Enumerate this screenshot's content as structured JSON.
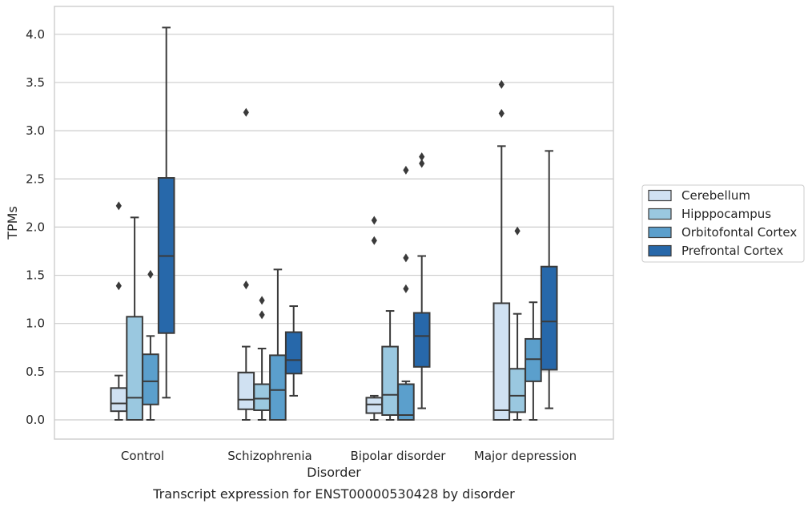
{
  "chart_data": {
    "type": "box",
    "xlabel": "Disorder",
    "ylabel": "TPMs",
    "caption": "Transcript expression for ENST00000530428 by disorder",
    "ylim": [
      -0.2,
      4.25
    ],
    "yticks": [
      "0.0",
      "0.5",
      "1.0",
      "1.5",
      "2.0",
      "2.5",
      "3.0",
      "3.5",
      "4.0"
    ],
    "grid": "horizontal",
    "legend_position": "right",
    "categories": [
      "Control",
      "Schizophrenia",
      "Bipolar disorder",
      "Major depression"
    ],
    "series": [
      {
        "name": "Cerebellum",
        "color": "#d0e1f2",
        "boxes": [
          {
            "whisker_low": 0.0,
            "q1": 0.09,
            "median": 0.17,
            "q3": 0.33,
            "whisker_high": 0.46,
            "outliers": [
              2.22,
              1.39
            ]
          },
          {
            "whisker_low": 0.0,
            "q1": 0.11,
            "median": 0.21,
            "q3": 0.49,
            "whisker_high": 0.76,
            "outliers": [
              3.19,
              1.4
            ]
          },
          {
            "whisker_low": 0.0,
            "q1": 0.07,
            "median": 0.16,
            "q3": 0.23,
            "whisker_high": 0.25,
            "outliers": [
              2.07,
              1.86
            ]
          },
          {
            "whisker_low": 0.0,
            "q1": 0.0,
            "median": 0.1,
            "q3": 1.21,
            "whisker_high": 2.84,
            "outliers": [
              3.48,
              3.18
            ]
          }
        ]
      },
      {
        "name": "Hipppocampus",
        "color": "#9ac8e0",
        "boxes": [
          {
            "whisker_low": 0.0,
            "q1": 0.0,
            "median": 0.23,
            "q3": 1.07,
            "whisker_high": 2.1,
            "outliers": []
          },
          {
            "whisker_low": 0.0,
            "q1": 0.1,
            "median": 0.22,
            "q3": 0.37,
            "whisker_high": 0.74,
            "outliers": [
              1.24,
              1.09
            ]
          },
          {
            "whisker_low": 0.0,
            "q1": 0.05,
            "median": 0.26,
            "q3": 0.76,
            "whisker_high": 1.13,
            "outliers": []
          },
          {
            "whisker_low": 0.0,
            "q1": 0.08,
            "median": 0.25,
            "q3": 0.53,
            "whisker_high": 1.1,
            "outliers": [
              1.96
            ]
          }
        ]
      },
      {
        "name": "Orbitofontal Cortex",
        "color": "#5b9fcc",
        "boxes": [
          {
            "whisker_low": 0.0,
            "q1": 0.16,
            "median": 0.4,
            "q3": 0.68,
            "whisker_high": 0.87,
            "outliers": [
              1.51
            ]
          },
          {
            "whisker_low": 0.0,
            "q1": 0.0,
            "median": 0.31,
            "q3": 0.67,
            "whisker_high": 1.56,
            "outliers": []
          },
          {
            "whisker_low": 0.0,
            "q1": 0.0,
            "median": 0.05,
            "q3": 0.37,
            "whisker_high": 0.4,
            "outliers": [
              2.59,
              1.68,
              1.36
            ]
          },
          {
            "whisker_low": 0.0,
            "q1": 0.4,
            "median": 0.63,
            "q3": 0.84,
            "whisker_high": 1.22,
            "outliers": []
          }
        ]
      },
      {
        "name": "Prefrontal Cortex",
        "color": "#2768aa",
        "boxes": [
          {
            "whisker_low": 0.23,
            "q1": 0.9,
            "median": 1.7,
            "q3": 2.51,
            "whisker_high": 4.07,
            "outliers": []
          },
          {
            "whisker_low": 0.25,
            "q1": 0.48,
            "median": 0.62,
            "q3": 0.91,
            "whisker_high": 1.18,
            "outliers": []
          },
          {
            "whisker_low": 0.12,
            "q1": 0.55,
            "median": 0.87,
            "q3": 1.11,
            "whisker_high": 1.7,
            "outliers": [
              2.73,
              2.66
            ]
          },
          {
            "whisker_low": 0.12,
            "q1": 0.52,
            "median": 1.02,
            "q3": 1.59,
            "whisker_high": 2.79,
            "outliers": []
          }
        ]
      }
    ]
  }
}
